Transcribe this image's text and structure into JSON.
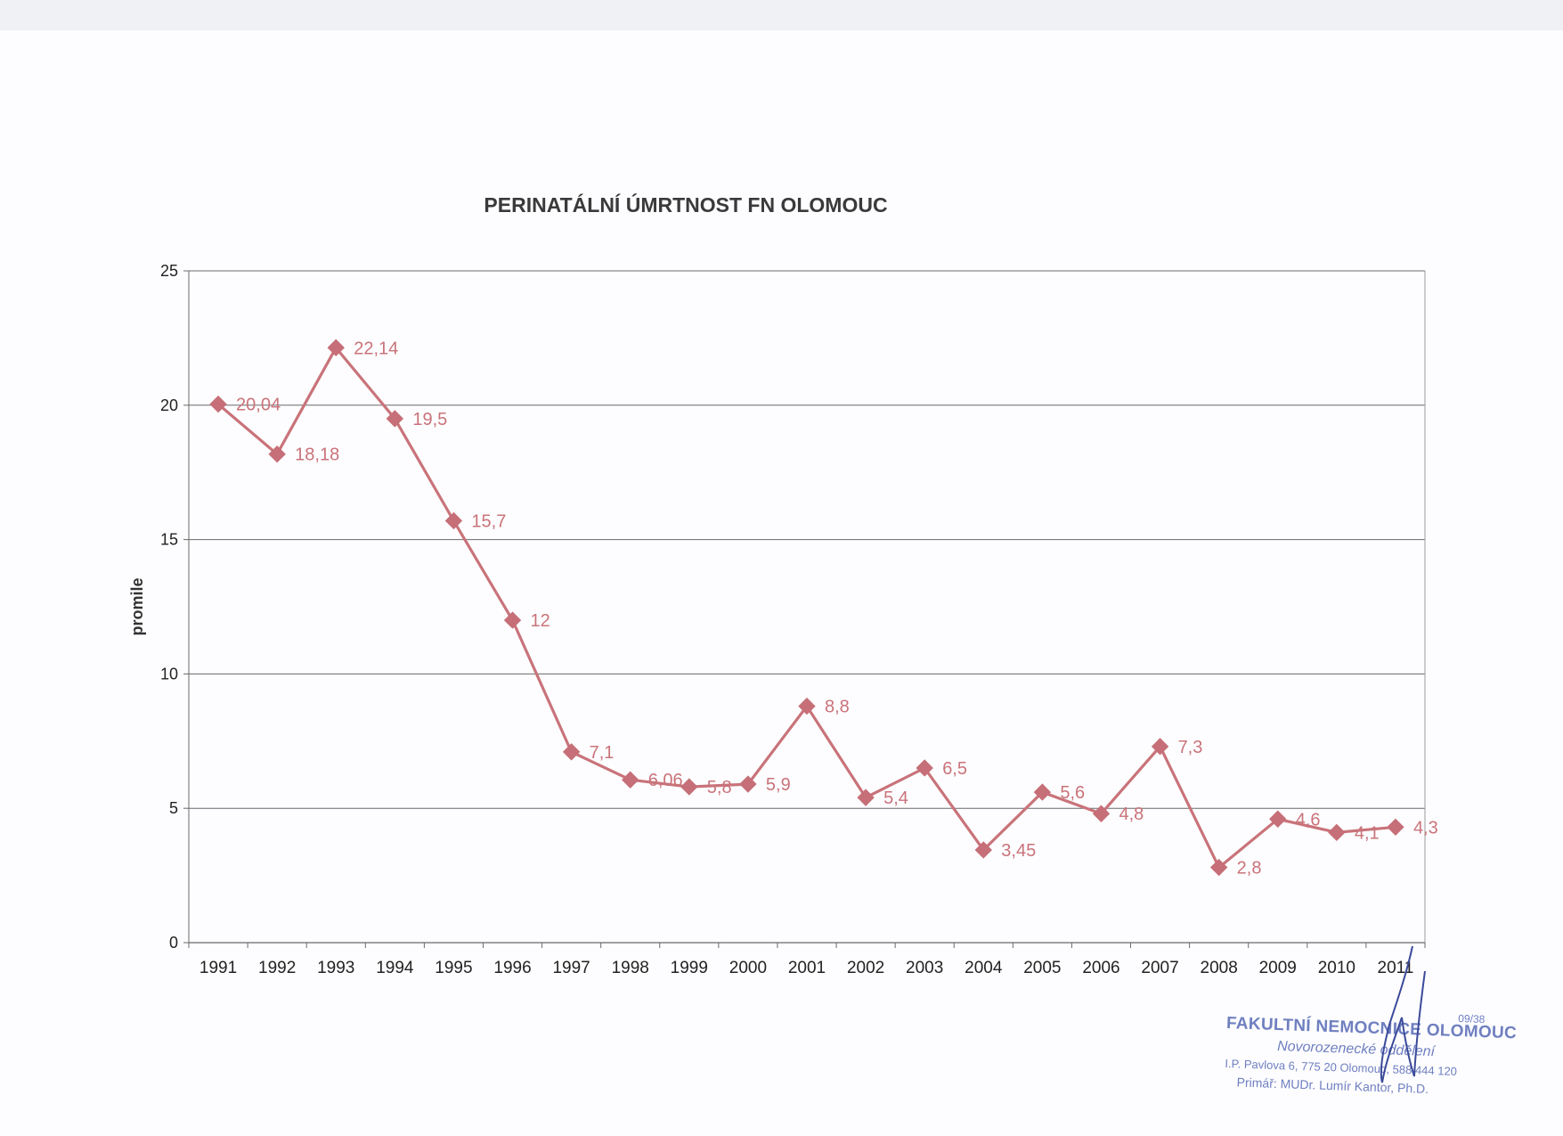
{
  "colors": {
    "series": "#c9737a",
    "marker": "#c66f78",
    "grid": "#6a6a6a",
    "text": "#222222",
    "stamp": "#6f7fc0",
    "signature": "#3b4a9a"
  },
  "chart_data": {
    "type": "line",
    "title": "PERINATÁLNÍ ÚMRTNOST FN OLOMOUC",
    "xlabel": "",
    "ylabel": "promile",
    "ylim": [
      0,
      25
    ],
    "yticks": [
      "0",
      "5",
      "10",
      "15",
      "20",
      "25"
    ],
    "grid": true,
    "marker": "diamond",
    "categories": [
      "1991",
      "1992",
      "1993",
      "1994",
      "1995",
      "1996",
      "1997",
      "1998",
      "1999",
      "2000",
      "2001",
      "2002",
      "2003",
      "2004",
      "2005",
      "2006",
      "2007",
      "2008",
      "2009",
      "2010",
      "2011"
    ],
    "values": [
      20.04,
      18.18,
      22.14,
      19.5,
      15.7,
      12,
      7.1,
      6.06,
      5.8,
      5.9,
      8.8,
      5.4,
      6.5,
      3.45,
      5.6,
      4.8,
      7.3,
      2.8,
      4.6,
      4.1,
      4.3
    ],
    "data_labels": [
      "20,04",
      "18,18",
      "22,14",
      "19,5",
      "15,7",
      "12",
      "7,1",
      "6,06",
      "5,8",
      "5,9",
      "8,8",
      "5,4",
      "6,5",
      "3,45",
      "5,6",
      "4,8",
      "7,3",
      "2,8",
      "4,6",
      "4,1",
      "4,3"
    ]
  },
  "stamp": {
    "code": "09/38",
    "title": "FAKULTNÍ NEMOCNICE OLOMOUC",
    "department": "Novorozenecké oddělení",
    "address": "I.P. Pavlova 6, 775 20 Olomouc, 588 444 120",
    "head": "Primář: MUDr. Lumír Kantor, Ph.D."
  }
}
